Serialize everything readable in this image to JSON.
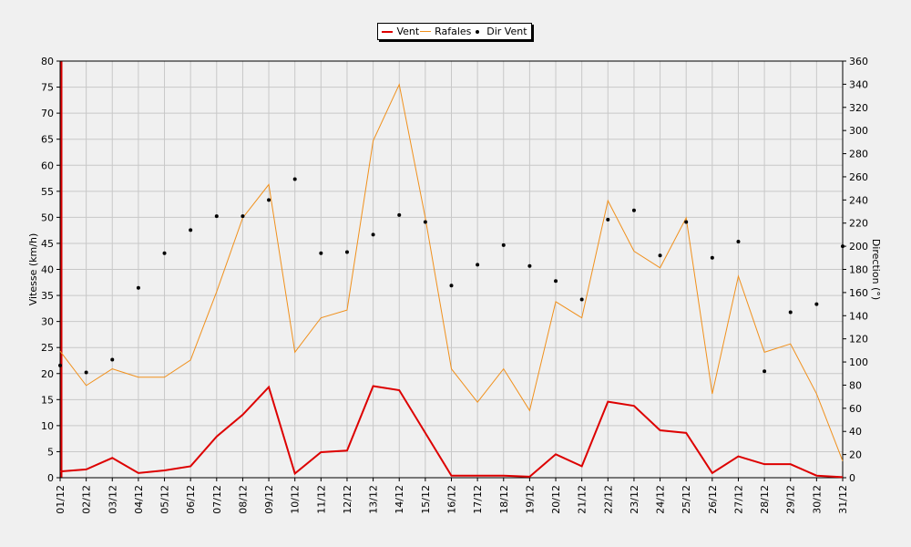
{
  "chart_data": {
    "type": "line",
    "categories": [
      "01/12",
      "02/12",
      "03/12",
      "04/12",
      "05/12",
      "06/12",
      "07/12",
      "08/12",
      "09/12",
      "10/12",
      "11/12",
      "12/12",
      "13/12",
      "14/12",
      "15/12",
      "16/12",
      "17/12",
      "18/12",
      "19/12",
      "20/12",
      "21/12",
      "22/12",
      "23/12",
      "24/12",
      "25/12",
      "26/12",
      "27/12",
      "28/12",
      "29/12",
      "30/12",
      "31/12"
    ],
    "xlabel": "",
    "ylabel": "Vitesse (km/h)",
    "y2label": "Direction (°)",
    "ylim": [
      0,
      80
    ],
    "y2lim": [
      0,
      360
    ],
    "yticks": [
      0,
      5,
      10,
      15,
      20,
      25,
      30,
      35,
      40,
      45,
      50,
      55,
      60,
      65,
      70,
      75,
      80
    ],
    "y2ticks": [
      0,
      20,
      40,
      60,
      80,
      100,
      120,
      140,
      160,
      180,
      200,
      220,
      240,
      260,
      280,
      300,
      320,
      340,
      360
    ],
    "grid": true,
    "legend_position": "top-center",
    "series": [
      {
        "name": "Vent",
        "axis": "left",
        "style": "line",
        "color": "#dd0000",
        "values": [
          1.2,
          1.6,
          3.8,
          0.9,
          1.4,
          2.2,
          7.9,
          12.1,
          17.4,
          0.8,
          4.9,
          5.2,
          17.6,
          16.8,
          8.6,
          0.4,
          0.4,
          0.4,
          0.2,
          4.5,
          2.2,
          14.6,
          13.8,
          9.1,
          8.6,
          0.9,
          4.1,
          2.6,
          2.6,
          0.4,
          0.1
        ]
      },
      {
        "name": "Rafales",
        "axis": "left",
        "style": "line",
        "color": "#f0901c",
        "values": [
          24.3,
          17.7,
          20.9,
          19.3,
          19.3,
          22.6,
          35.7,
          49.9,
          56.3,
          24.1,
          30.7,
          32.2,
          64.7,
          75.5,
          49.9,
          20.9,
          14.5,
          20.9,
          12.9,
          33.8,
          30.7,
          53.2,
          43.5,
          40.3,
          49.9,
          16.1,
          38.7,
          24.1,
          25.7,
          16.1,
          3.2
        ]
      },
      {
        "name": "Dir Vent",
        "axis": "right",
        "style": "points",
        "color": "#000000",
        "values": [
          97,
          91,
          102,
          164,
          194,
          214,
          226,
          226,
          240,
          258,
          194,
          195,
          210,
          227,
          221,
          166,
          184,
          201,
          183,
          170,
          154,
          223,
          231,
          192,
          221,
          190,
          204,
          92,
          143,
          150,
          200
        ]
      }
    ]
  }
}
